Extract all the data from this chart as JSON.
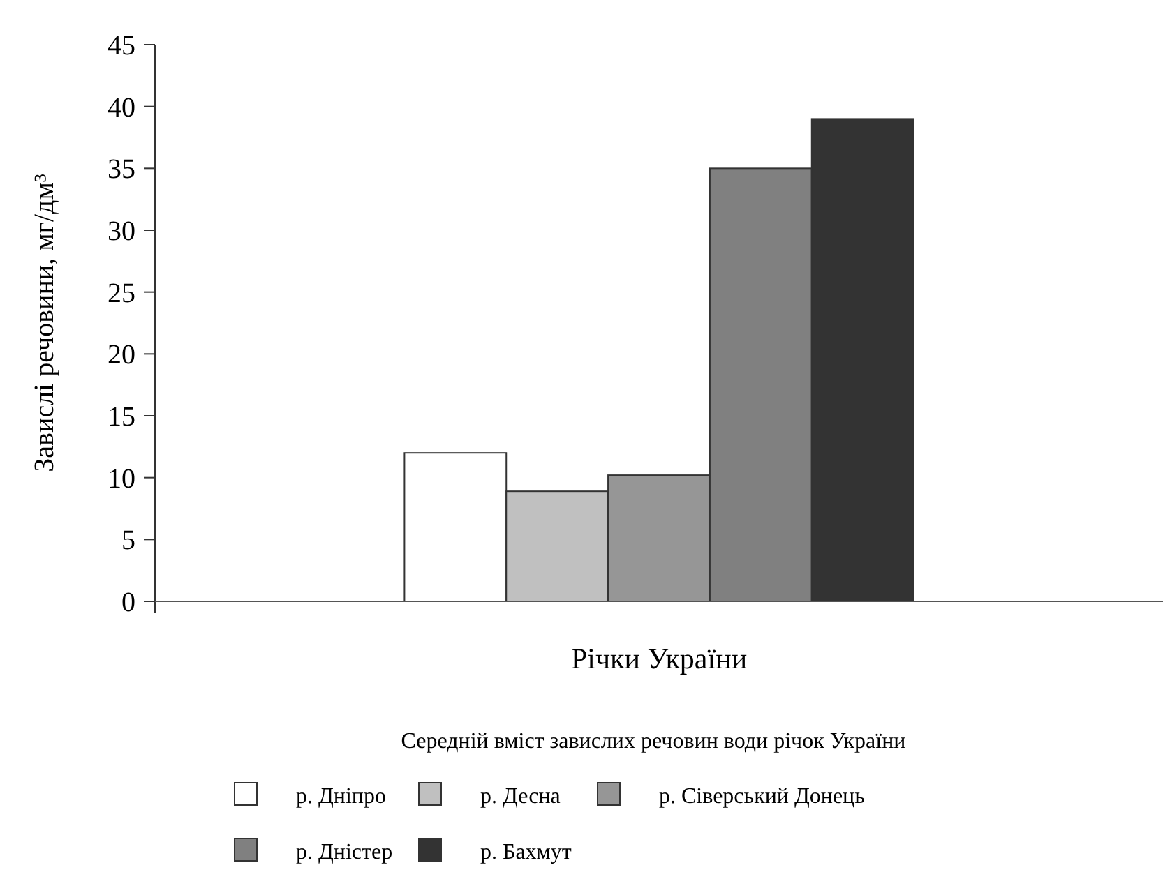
{
  "chart_data": {
    "type": "bar",
    "xlabel": "Річки України",
    "ylabel": "Завислі речовини, мг/дм³",
    "legend_title": "Середній вміст завислих речовин води річок України",
    "categories": [
      null
    ],
    "series": [
      {
        "name": "р. Дніпро",
        "color": "#ffffff",
        "values": [
          12
        ]
      },
      {
        "name": "р. Десна",
        "color": "#c0c0c0",
        "values": [
          8.9
        ]
      },
      {
        "name": "р. Сіверський Донець",
        "color": "#969696",
        "values": [
          10.2
        ]
      },
      {
        "name": "р. Дністер",
        "color": "#808080",
        "values": [
          35
        ]
      },
      {
        "name": "р. Бахмут",
        "color": "#333333",
        "values": [
          39
        ]
      }
    ],
    "ylim": [
      0,
      45
    ],
    "yticks": [
      0,
      5,
      10,
      15,
      20,
      25,
      30,
      35,
      40,
      45
    ],
    "grid": false,
    "legend": "bottom"
  }
}
